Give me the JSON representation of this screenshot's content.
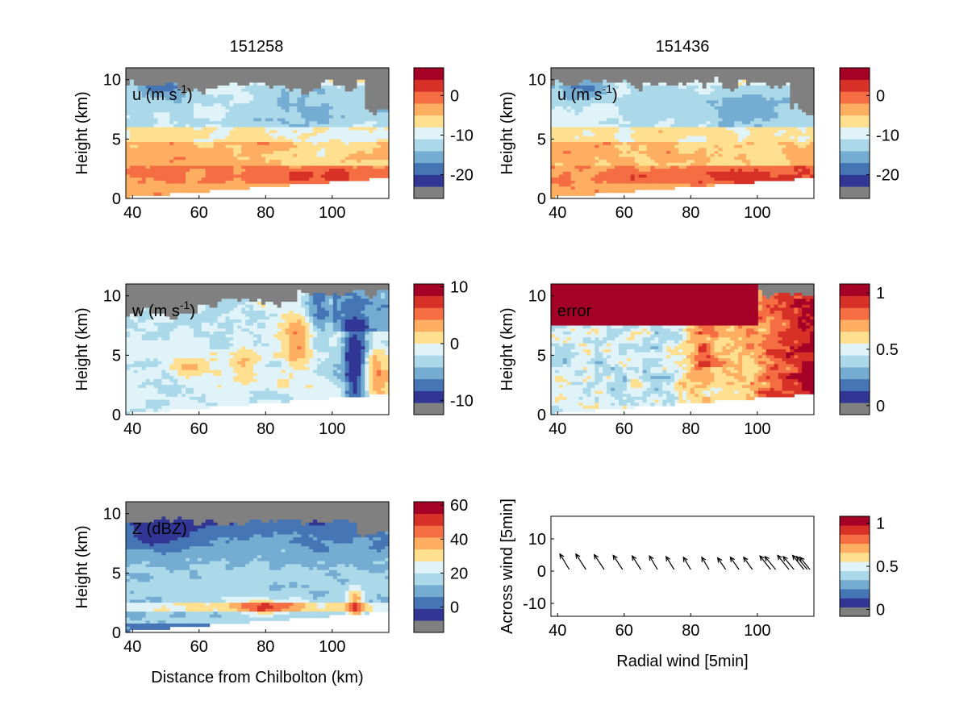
{
  "titles": {
    "left": "151258",
    "right": "151436"
  },
  "chart_data": [
    {
      "type": "heatmap",
      "panel": "u1",
      "label": "u (m s",
      "label_sup": "-1",
      "label_close": ")",
      "ylabel": "Height (km)",
      "xlabel": "",
      "xlim": [
        38,
        117
      ],
      "ylim": [
        0,
        11
      ],
      "xticks": [
        "40",
        "60",
        "80",
        "100"
      ],
      "yticks": [
        "0",
        "5",
        "10"
      ],
      "colorbar": {
        "min": -26,
        "max": 7,
        "ticks": [
          "0",
          "-10",
          "-20"
        ],
        "tick_values": [
          0,
          -10,
          -20
        ]
      },
      "field": "u"
    },
    {
      "type": "heatmap",
      "panel": "u2",
      "label": "u (m s",
      "label_sup": "-1",
      "label_close": ")",
      "ylabel": "Height (km)",
      "xlabel": "",
      "xlim": [
        38,
        117
      ],
      "ylim": [
        0,
        11
      ],
      "xticks": [
        "40",
        "60",
        "80",
        "100"
      ],
      "yticks": [
        "0",
        "5",
        "10"
      ],
      "colorbar": {
        "min": -26,
        "max": 7,
        "ticks": [
          "0",
          "-10",
          "-20"
        ],
        "tick_values": [
          0,
          -10,
          -20
        ]
      },
      "field": "u"
    },
    {
      "type": "heatmap",
      "panel": "w",
      "label": "w (m s",
      "label_sup": "-1",
      "label_close": ")",
      "ylabel": "Height (km)",
      "xlabel": "",
      "xlim": [
        38,
        117
      ],
      "ylim": [
        0,
        11
      ],
      "xticks": [
        "40",
        "60",
        "80",
        "100"
      ],
      "yticks": [
        "0",
        "5",
        "10"
      ],
      "colorbar": {
        "min": -12.5,
        "max": 10.5,
        "ticks": [
          "10",
          "0",
          "-10"
        ],
        "tick_values": [
          10,
          0,
          -10
        ]
      },
      "field": "w"
    },
    {
      "type": "heatmap",
      "panel": "error",
      "label": "error",
      "label_sup": "",
      "label_close": "",
      "ylabel": "Height (km)",
      "xlabel": "",
      "xlim": [
        38,
        117
      ],
      "ylim": [
        0,
        11
      ],
      "xticks": [
        "40",
        "60",
        "80",
        "100"
      ],
      "yticks": [
        "0",
        "5",
        "10"
      ],
      "colorbar": {
        "min": -0.08,
        "max": 1.08,
        "ticks": [
          "1",
          "0.5",
          "0"
        ],
        "tick_values": [
          1,
          0.5,
          0
        ]
      },
      "field": "error"
    },
    {
      "type": "heatmap",
      "panel": "Z",
      "label": "Z (dBZ)",
      "label_sup": "",
      "label_close": "",
      "ylabel": "Height (km)",
      "xlabel": "Distance from Chilbolton (km)",
      "xlim": [
        38,
        117
      ],
      "ylim": [
        0,
        11
      ],
      "xticks": [
        "40",
        "60",
        "80",
        "100"
      ],
      "yticks": [
        "0",
        "5",
        "10"
      ],
      "colorbar": {
        "min": -15,
        "max": 62,
        "ticks": [
          "60",
          "40",
          "20",
          "0"
        ],
        "tick_values": [
          60,
          40,
          20,
          0
        ]
      },
      "field": "Z"
    },
    {
      "type": "quiver",
      "panel": "wind",
      "label": "",
      "ylabel": "Across wind [5min]",
      "xlabel": "Radial wind [5min]",
      "xlim": [
        38,
        117
      ],
      "ylim": [
        -14,
        17
      ],
      "xticks": [
        "40",
        "60",
        "80",
        "100"
      ],
      "yticks": [
        "10",
        "0",
        "-10"
      ],
      "colorbar": {
        "min": -0.08,
        "max": 1.08,
        "ticks": [
          "1",
          "0.5",
          "0"
        ],
        "tick_values": [
          1,
          0.5,
          0
        ]
      },
      "arrows": [
        {
          "x": 43.5,
          "y": 0.5,
          "dx": -2.8,
          "dy": 4.8
        },
        {
          "x": 48.5,
          "y": 0.5,
          "dx": -3.0,
          "dy": 4.8
        },
        {
          "x": 54.0,
          "y": 0.5,
          "dx": -3.0,
          "dy": 4.6
        },
        {
          "x": 59.5,
          "y": 0.5,
          "dx": -2.8,
          "dy": 4.4
        },
        {
          "x": 65.0,
          "y": 0.5,
          "dx": -2.6,
          "dy": 4.2
        },
        {
          "x": 70.0,
          "y": 0.5,
          "dx": -2.4,
          "dy": 4.2
        },
        {
          "x": 75.0,
          "y": 0.5,
          "dx": -2.4,
          "dy": 4.0
        },
        {
          "x": 80.0,
          "y": 0.5,
          "dx": -2.2,
          "dy": 3.8
        },
        {
          "x": 85.5,
          "y": 0.5,
          "dx": -2.2,
          "dy": 3.8
        },
        {
          "x": 90.5,
          "y": 0.5,
          "dx": -2.4,
          "dy": 3.6
        },
        {
          "x": 94.5,
          "y": 0.5,
          "dx": -2.6,
          "dy": 3.8
        },
        {
          "x": 98.5,
          "y": 0.5,
          "dx": -2.6,
          "dy": 3.8
        },
        {
          "x": 104.0,
          "y": 0.5,
          "dx": -3.2,
          "dy": 4.2
        },
        {
          "x": 105.5,
          "y": 0.5,
          "dx": -3.2,
          "dy": 4.0
        },
        {
          "x": 109.5,
          "y": 0.5,
          "dx": -3.4,
          "dy": 4.4
        },
        {
          "x": 111.0,
          "y": 0.5,
          "dx": -3.2,
          "dy": 4.0
        },
        {
          "x": 114.0,
          "y": 0.5,
          "dx": -3.4,
          "dy": 4.4
        },
        {
          "x": 115.0,
          "y": 0.5,
          "dx": -3.2,
          "dy": 4.0
        },
        {
          "x": 115.8,
          "y": 0.5,
          "dx": -3.0,
          "dy": 3.8
        }
      ]
    }
  ],
  "colors": {
    "palette": [
      "#313695",
      "#4575b4",
      "#74add1",
      "#abd9e9",
      "#e0f3f8",
      "#fee090",
      "#fdae61",
      "#f46d43",
      "#d73027",
      "#a50026"
    ],
    "missing": "#808080",
    "axis": "#000000"
  }
}
